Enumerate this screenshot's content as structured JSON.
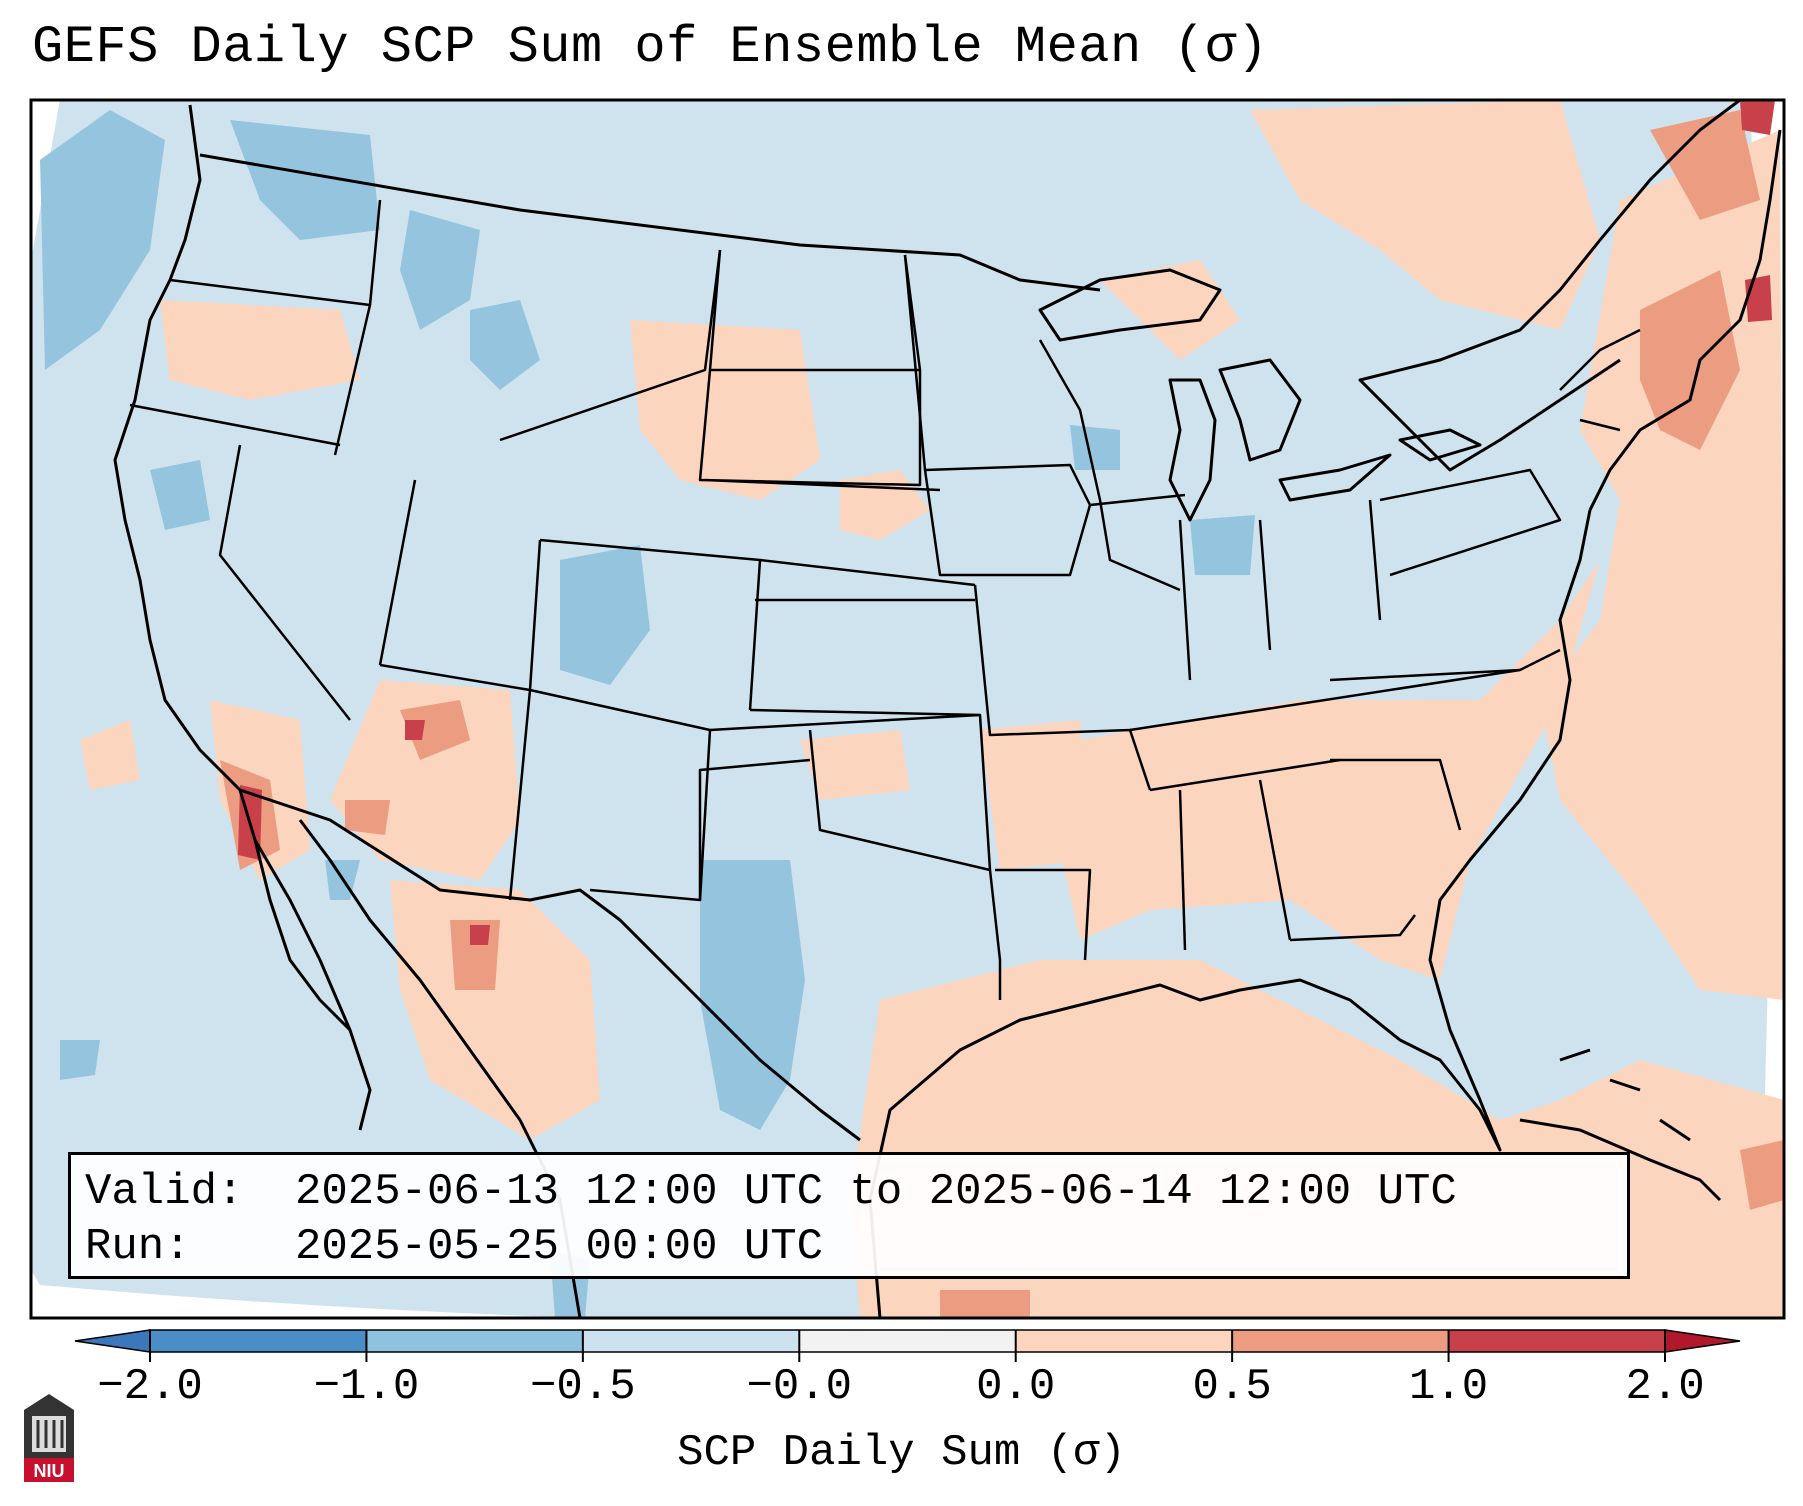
{
  "title": "GEFS Daily SCP Sum of Ensemble Mean (σ)",
  "info": {
    "valid_label": "Valid:",
    "valid_value": "2025-06-13 12:00 UTC to 2025-06-14 12:00 UTC",
    "run_label": "Run:",
    "run_value": "2025-05-25 00:00 UTC"
  },
  "colorbar": {
    "label": "SCP Daily Sum (σ)",
    "ticks": [
      "−2.0",
      "−1.0",
      "−0.5",
      "−0.0",
      "0.0",
      "0.5",
      "1.0",
      "2.0"
    ],
    "colors": [
      "#4a8ec8",
      "#8fc2de",
      "#cde2ef",
      "#f2f2f2",
      "#fcd5bf",
      "#ec9c80",
      "#c8404a"
    ],
    "extend_low_color": "#3a78bb",
    "extend_high_color": "#b2182b"
  },
  "logo": {
    "text": "NIU",
    "color": "#c8102e"
  }
}
